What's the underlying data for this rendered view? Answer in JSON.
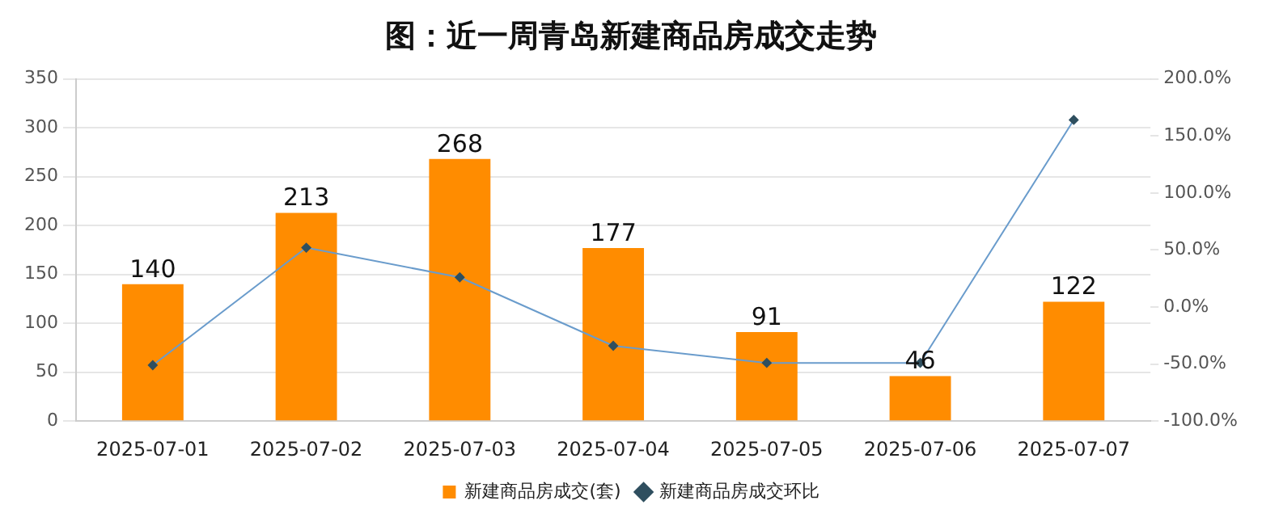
{
  "chart_data": {
    "type": "bar",
    "title": "图：近一周青岛新建商品房成交走势",
    "categories": [
      "2025-07-01",
      "2025-07-02",
      "2025-07-03",
      "2025-07-04",
      "2025-07-05",
      "2025-07-06",
      "2025-07-07"
    ],
    "series": [
      {
        "name": "新建商品房成交(套)",
        "color": "#ff8c00",
        "values": [
          140,
          213,
          268,
          177,
          91,
          46,
          122
        ],
        "value_labels": [
          "140",
          "213",
          "268",
          "177",
          "91",
          "46",
          "122"
        ]
      },
      {
        "name": "新建商品房成交环比",
        "type": "line",
        "axis": "y2",
        "color": "#6a9ccc",
        "values": [
          -51,
          52,
          26,
          -34,
          -49,
          -49,
          164
        ]
      }
    ],
    "ylim": [
      0,
      350
    ],
    "yticks": [
      0,
      50,
      100,
      150,
      200,
      250,
      300,
      350
    ],
    "y2lim": [
      -100,
      200
    ],
    "y2ticks": [
      {
        "value": -100,
        "label": "-100.0%"
      },
      {
        "value": -50,
        "label": "-50.0%"
      },
      {
        "value": 0,
        "label": "0.0%"
      },
      {
        "value": 50,
        "label": "50.0%"
      },
      {
        "value": 100,
        "label": "100.0%"
      },
      {
        "value": 150,
        "label": "150.0%"
      },
      {
        "value": 200,
        "label": "200.0%"
      }
    ],
    "grid": "y",
    "legend": "bottom",
    "marker": "diamond"
  }
}
